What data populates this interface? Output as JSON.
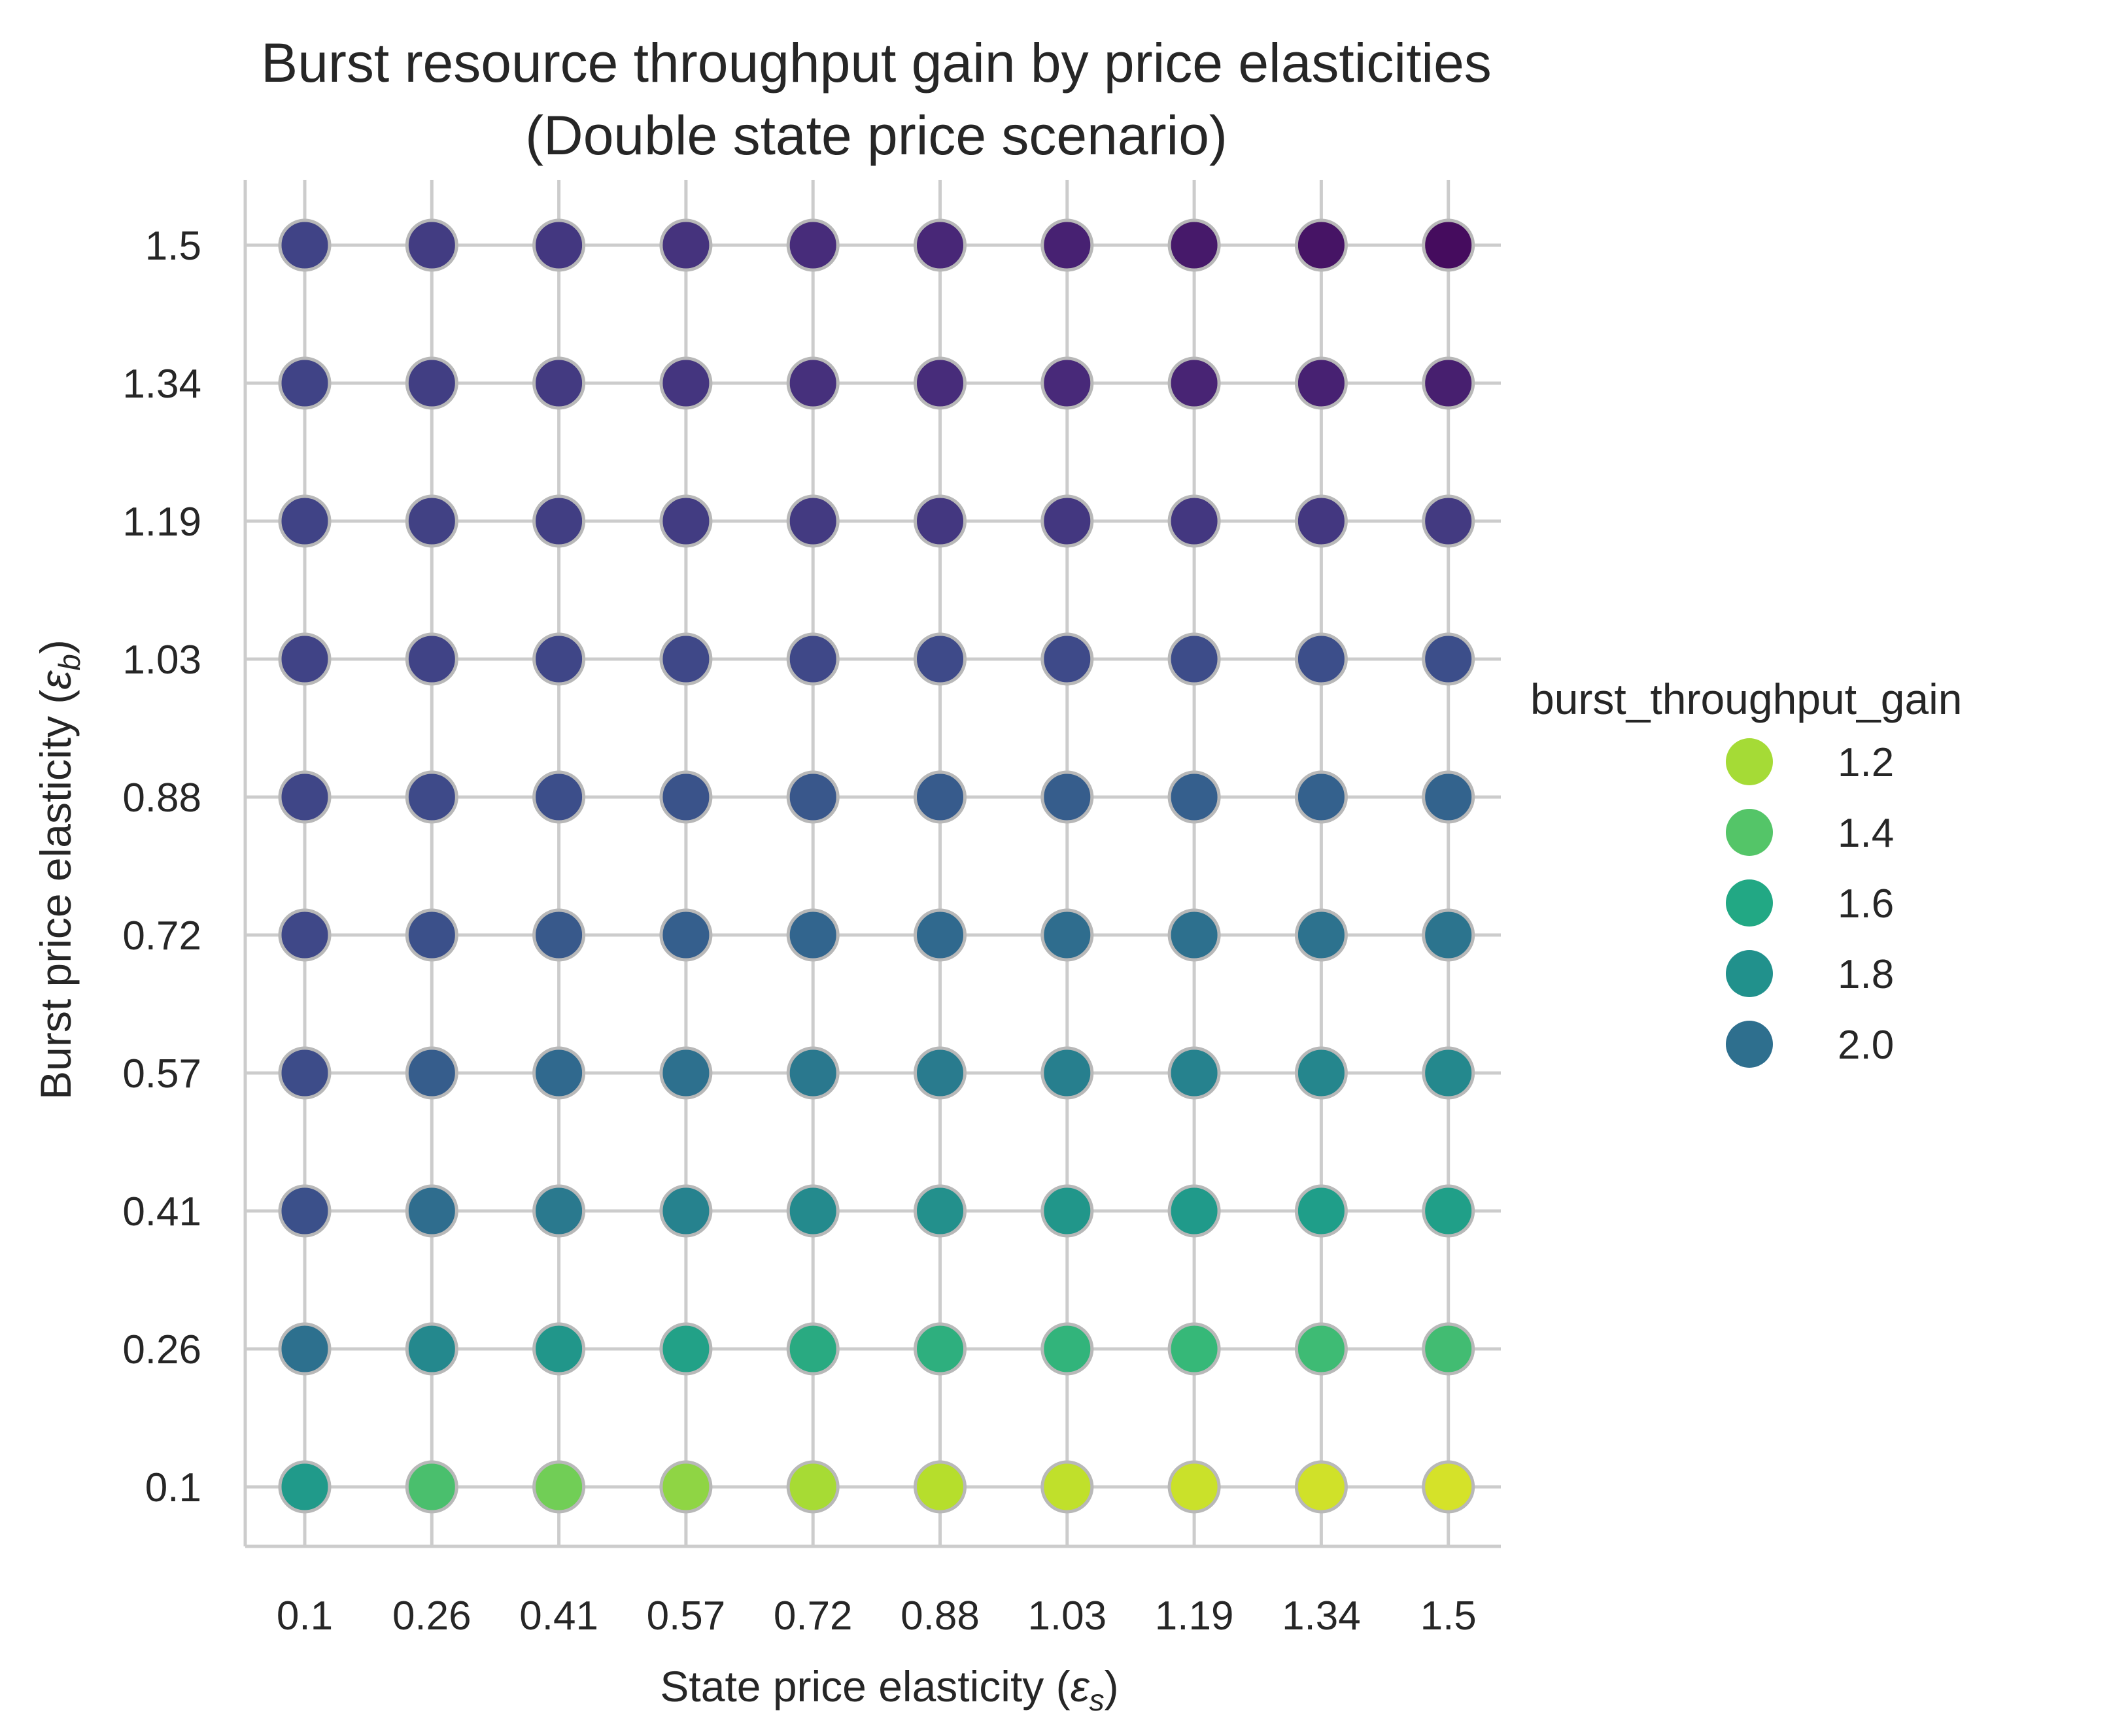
{
  "chart_data": {
    "type": "scatter",
    "title_line1": "Burst resource throughput gain by price elasticities",
    "title_line2": "(Double state price scenario)",
    "xlabel_text": "State price elasticity (",
    "xlabel_symbol": "ε",
    "xlabel_sub": "s",
    "xlabel_close": ")",
    "ylabel_text": "Burst price elasticity (",
    "ylabel_symbol": "ε",
    "ylabel_sub": "b",
    "ylabel_close": ")",
    "x_ticks": [
      "0.1",
      "0.26",
      "0.41",
      "0.57",
      "0.72",
      "0.88",
      "1.03",
      "1.19",
      "1.34",
      "1.5"
    ],
    "y_ticks": [
      "0.1",
      "0.26",
      "0.41",
      "0.57",
      "0.72",
      "0.88",
      "1.03",
      "1.19",
      "1.34",
      "1.5"
    ],
    "colormap": "viridis",
    "color_range": [
      1.0,
      2.3
    ],
    "grid": true,
    "legend": {
      "title": "burst_throughput_gain",
      "placement": "right",
      "entries": [
        {
          "label": "1.2",
          "value": 1.2,
          "color": "#a5db36"
        },
        {
          "label": "1.4",
          "value": 1.4,
          "color": "#54c568"
        },
        {
          "label": "1.6",
          "value": 1.6,
          "color": "#22a884"
        },
        {
          "label": "1.8",
          "value": 1.8,
          "color": "#21918c"
        },
        {
          "label": "2.0",
          "value": 2.0,
          "color": "#2e6f8e"
        }
      ]
    },
    "values": [
      [
        1.6,
        1.38,
        1.28,
        1.22,
        1.17,
        1.14,
        1.12,
        1.1,
        1.09,
        1.08
      ],
      [
        1.82,
        1.69,
        1.62,
        1.56,
        1.51,
        1.48,
        1.45,
        1.43,
        1.41,
        1.4
      ],
      [
        1.98,
        1.84,
        1.77,
        1.72,
        1.68,
        1.65,
        1.62,
        1.6,
        1.58,
        1.57
      ],
      [
        2.0,
        1.92,
        1.86,
        1.82,
        1.78,
        1.76,
        1.74,
        1.72,
        1.7,
        1.69
      ],
      [
        2.02,
        1.98,
        1.94,
        1.91,
        1.88,
        1.86,
        1.84,
        1.82,
        1.81,
        1.8
      ],
      [
        2.03,
        2.01,
        1.99,
        1.97,
        1.95,
        1.93,
        1.92,
        1.91,
        1.9,
        1.89
      ],
      [
        2.04,
        2.04,
        2.03,
        2.02,
        2.02,
        2.01,
        2.01,
        2.0,
        1.99,
        1.99
      ],
      [
        2.04,
        2.05,
        2.06,
        2.07,
        2.08,
        2.09,
        2.09,
        2.09,
        2.09,
        2.08
      ],
      [
        2.04,
        2.06,
        2.08,
        2.1,
        2.12,
        2.14,
        2.15,
        2.17,
        2.18,
        2.19
      ],
      [
        2.04,
        2.07,
        2.09,
        2.11,
        2.14,
        2.16,
        2.18,
        2.21,
        2.23,
        2.26
      ]
    ]
  }
}
